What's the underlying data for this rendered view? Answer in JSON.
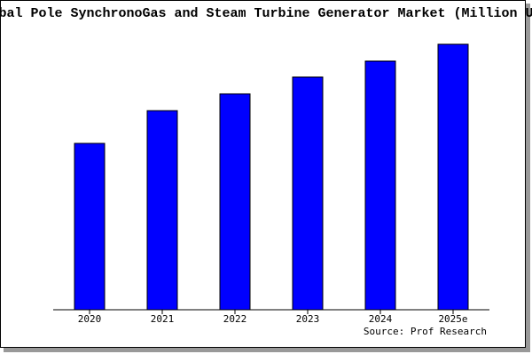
{
  "chart_data": {
    "type": "bar",
    "title": "bal Pole SynchronoGas and Steam Turbine Generator Market (Million U",
    "source": "Source: Prof Research",
    "categories": [
      "2020",
      "2021",
      "2022",
      "2023",
      "2024",
      "2025e"
    ],
    "values": [
      188,
      225,
      244,
      263,
      281,
      300
    ],
    "color": "#0000ff",
    "ylim": [
      0,
      300
    ]
  }
}
